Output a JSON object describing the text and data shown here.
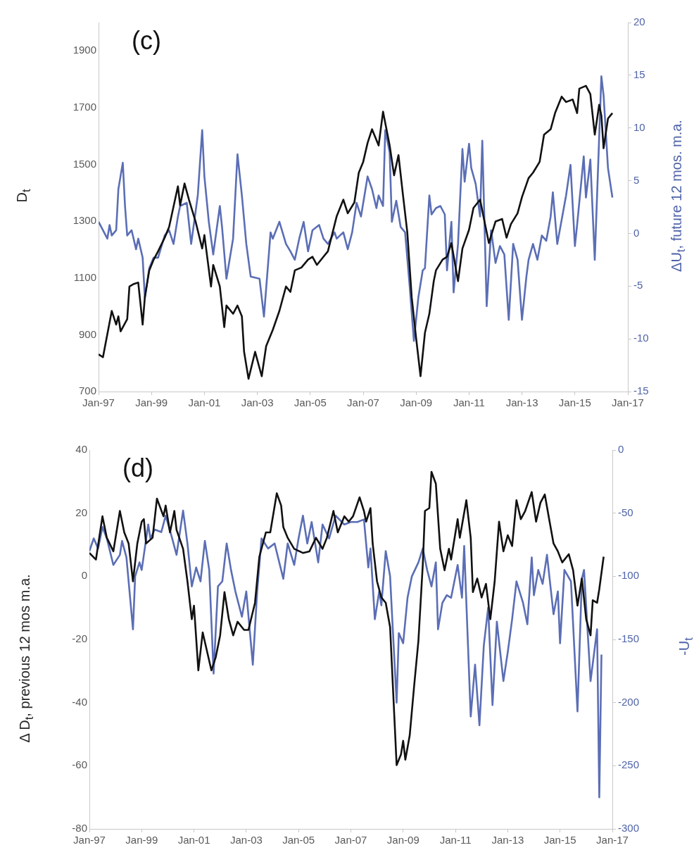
{
  "chart_data": [
    {
      "type": "line",
      "ylabel": "D$_{t}$",
      "y2label": "ΔU$_{t}$, future 12 mos. m.a.",
      "annotations": [
        "(c)"
      ],
      "xlim": [
        "1997-01",
        "2017-01"
      ],
      "xticks": [
        {
          "value": "1997-01",
          "label": "Jan-97"
        },
        {
          "value": "1999-01",
          "label": "Jan-99"
        },
        {
          "value": "2001-01",
          "label": "Jan-01"
        },
        {
          "value": "2003-01",
          "label": "Jan-03"
        },
        {
          "value": "2005-01",
          "label": "Jan-05"
        },
        {
          "value": "2007-01",
          "label": "Jan-07"
        },
        {
          "value": "2009-01",
          "label": "Jan-09"
        },
        {
          "value": "2011-01",
          "label": "Jan-11"
        },
        {
          "value": "2013-01",
          "label": "Jan-13"
        },
        {
          "value": "2015-01",
          "label": "Jan-15"
        },
        {
          "value": "2017-01",
          "label": "Jan-17"
        }
      ],
      "ylim": [
        700,
        2000
      ],
      "yticks": [
        700,
        900,
        1100,
        1300,
        1500,
        1700,
        1900
      ],
      "y2lim": [
        -15,
        20
      ],
      "y2ticks": [
        -15,
        -10,
        -5,
        0,
        5,
        10,
        15,
        20
      ],
      "series": [
        {
          "color": "#111111",
          "x": [
            "1997-01",
            "1997-03",
            "1997-07",
            "1997-09",
            "1997-10",
            "1997-11",
            "1998-02",
            "1998-03",
            "1998-05",
            "1998-07",
            "1998-09",
            "1998-10",
            "1998-12",
            "1999-02",
            "1999-04",
            "1999-07",
            "1999-09",
            "2000-01",
            "2000-02",
            "2000-04",
            "2000-06",
            "2000-09",
            "2000-12",
            "2001-01",
            "2001-04",
            "2001-05",
            "2001-08",
            "2001-10",
            "2001-11",
            "2002-02",
            "2002-04",
            "2002-06",
            "2002-07",
            "2002-09",
            "2002-12",
            "2003-03",
            "2003-05",
            "2003-08",
            "2003-11",
            "2004-02",
            "2004-04",
            "2004-06",
            "2004-09",
            "2004-12",
            "2005-02",
            "2005-04",
            "2005-07",
            "2005-09",
            "2006-01",
            "2006-04",
            "2006-06",
            "2006-09",
            "2006-11",
            "2007-01",
            "2007-03",
            "2007-05",
            "2007-08",
            "2007-10",
            "2008-01",
            "2008-03",
            "2008-05",
            "2008-07",
            "2008-09",
            "2008-11",
            "2009-01",
            "2009-03",
            "2009-05",
            "2009-07",
            "2009-09",
            "2009-10",
            "2010-01",
            "2010-03",
            "2010-05",
            "2010-08",
            "2010-10",
            "2011-01",
            "2011-03",
            "2011-06",
            "2011-08",
            "2011-10",
            "2012-01",
            "2012-04",
            "2012-06",
            "2012-08",
            "2012-11",
            "2013-01",
            "2013-04",
            "2013-06",
            "2013-09",
            "2013-11",
            "2014-02",
            "2014-04",
            "2014-07",
            "2014-09",
            "2014-12",
            "2015-02",
            "2015-03",
            "2015-06",
            "2015-08",
            "2015-10",
            "2015-12",
            "2016-01",
            "2016-02",
            "2016-04",
            "2016-06"
          ],
          "values": [
            831,
            821,
            984,
            936,
            965,
            912,
            955,
            1070,
            1079,
            1084,
            936,
            1032,
            1127,
            1165,
            1194,
            1242,
            1280,
            1423,
            1356,
            1433,
            1376,
            1299,
            1204,
            1251,
            1070,
            1146,
            1070,
            927,
            1003,
            974,
            1003,
            965,
            840,
            745,
            840,
            754,
            860,
            917,
            984,
            1070,
            1051,
            1127,
            1137,
            1165,
            1175,
            1146,
            1175,
            1194,
            1318,
            1376,
            1328,
            1366,
            1471,
            1509,
            1576,
            1624,
            1567,
            1686,
            1567,
            1462,
            1533,
            1395,
            1261,
            1032,
            888,
            754,
            907,
            974,
            1089,
            1127,
            1165,
            1175,
            1223,
            1089,
            1204,
            1270,
            1347,
            1376,
            1299,
            1223,
            1299,
            1308,
            1242,
            1290,
            1328,
            1385,
            1452,
            1471,
            1509,
            1605,
            1624,
            1681,
            1739,
            1720,
            1729,
            1681,
            1767,
            1777,
            1748,
            1605,
            1710,
            1672,
            1557,
            1662,
            1681
          ]
        },
        {
          "color": "#5b6eb5",
          "axis": "y2",
          "x": [
            "1997-01",
            "1997-03",
            "1997-05",
            "1997-06",
            "1997-07",
            "1997-09",
            "1997-10",
            "1997-12",
            "1998-01",
            "1998-02",
            "1998-04",
            "1998-06",
            "1998-07",
            "1998-09",
            "1998-10",
            "1998-12",
            "1999-02",
            "1999-04",
            "1999-07",
            "1999-09",
            "1999-11",
            "2000-01",
            "2000-02",
            "2000-05",
            "2000-07",
            "2000-10",
            "2000-12",
            "2001-01",
            "2001-03",
            "2001-05",
            "2001-08",
            "2001-09",
            "2001-11",
            "2002-02",
            "2002-04",
            "2002-06",
            "2002-08",
            "2002-10",
            "2003-02",
            "2003-04",
            "2003-07",
            "2003-08",
            "2003-11",
            "2004-02",
            "2004-04",
            "2004-06",
            "2004-08",
            "2004-10",
            "2004-12",
            "2005-02",
            "2005-05",
            "2005-07",
            "2005-09",
            "2005-12",
            "2006-01",
            "2006-04",
            "2006-06",
            "2006-08",
            "2006-10",
            "2006-12",
            "2007-03",
            "2007-05",
            "2007-07",
            "2007-08",
            "2007-10",
            "2007-11",
            "2008-01",
            "2008-02",
            "2008-04",
            "2008-06",
            "2008-08",
            "2008-10",
            "2008-12",
            "2009-02",
            "2009-04",
            "2009-05",
            "2009-07",
            "2009-08",
            "2009-10",
            "2009-12",
            "2010-02",
            "2010-03",
            "2010-05",
            "2010-06",
            "2010-08",
            "2010-10",
            "2010-11",
            "2011-01",
            "2011-02",
            "2011-04",
            "2011-06",
            "2011-07",
            "2011-09",
            "2011-11",
            "2012-01",
            "2012-03",
            "2012-05",
            "2012-07",
            "2012-09",
            "2012-11",
            "2013-01",
            "2013-03",
            "2013-04",
            "2013-06",
            "2013-08",
            "2013-10",
            "2013-12",
            "2014-02",
            "2014-03",
            "2014-05",
            "2014-07",
            "2014-09",
            "2014-11",
            "2015-01",
            "2015-02",
            "2015-05",
            "2015-06",
            "2015-08",
            "2015-10",
            "2016-01",
            "2016-02",
            "2016-04",
            "2016-06"
          ],
          "values": [
            1.1,
            0.3,
            -0.5,
            0.8,
            -0.2,
            0.3,
            4.2,
            6.7,
            2.6,
            -0.2,
            0.3,
            -1.5,
            -0.5,
            -2.3,
            -6.1,
            -3.3,
            -2.3,
            -2.3,
            -0.2,
            0.3,
            -1.0,
            1.6,
            2.6,
            2.9,
            -1.0,
            3.6,
            9.8,
            5.4,
            1.1,
            -2.0,
            2.6,
            0.6,
            -4.3,
            -0.5,
            7.5,
            3.6,
            -1.0,
            -4.1,
            -4.3,
            -7.9,
            0.1,
            -0.5,
            1.1,
            -1.0,
            -1.7,
            -2.5,
            -0.5,
            1.1,
            -1.7,
            0.3,
            0.8,
            -0.5,
            -1.0,
            0.1,
            -0.5,
            0.1,
            -1.5,
            0.1,
            2.9,
            1.6,
            5.4,
            4.2,
            2.4,
            3.6,
            2.6,
            9.8,
            7.7,
            1.1,
            3.1,
            0.6,
            0.1,
            -4.8,
            -10.2,
            -6.1,
            -3.5,
            -3.3,
            3.6,
            1.8,
            2.4,
            2.6,
            1.8,
            -3.5,
            1.1,
            -5.6,
            -1.0,
            8.0,
            4.9,
            8.5,
            6.2,
            4.7,
            1.6,
            8.8,
            -6.9,
            0.3,
            -2.8,
            -1.2,
            -2.0,
            -8.2,
            -1.0,
            -2.5,
            -8.2,
            -4.1,
            -2.5,
            -1.0,
            -2.5,
            -0.2,
            -0.7,
            1.6,
            3.9,
            -1.0,
            1.3,
            3.6,
            6.5,
            -1.2,
            0.8,
            7.3,
            3.4,
            7.0,
            -2.5,
            14.9,
            13.1,
            6.2,
            3.4
          ]
        }
      ]
    },
    {
      "type": "line",
      "ylabel": "Δ D$_{t}$, previous 12 mos m.a.",
      "y2label": "-U$_{t}$",
      "annotations": [
        "(d)"
      ],
      "xlim": [
        "1997-01",
        "2017-01"
      ],
      "xticks": [
        {
          "value": "1997-01",
          "label": "Jan-97"
        },
        {
          "value": "1999-01",
          "label": "Jan-99"
        },
        {
          "value": "2001-01",
          "label": "Jan-01"
        },
        {
          "value": "2003-01",
          "label": "Jan-03"
        },
        {
          "value": "2005-01",
          "label": "Jan-05"
        },
        {
          "value": "2007-01",
          "label": "Jan-07"
        },
        {
          "value": "2009-01",
          "label": "Jan-09"
        },
        {
          "value": "2011-01",
          "label": "Jan-11"
        },
        {
          "value": "2013-01",
          "label": "Jan-13"
        },
        {
          "value": "2015-01",
          "label": "Jan-15"
        },
        {
          "value": "2017-01",
          "label": "Jan-17"
        }
      ],
      "ylim": [
        -80,
        40
      ],
      "yticks": [
        -80,
        -60,
        -40,
        -20,
        0,
        20,
        40
      ],
      "y2lim": [
        -300,
        0
      ],
      "y2ticks": [
        -300,
        -250,
        -200,
        -150,
        -100,
        -50,
        0
      ],
      "series": [
        {
          "color": "#111111",
          "x": [
            "1997-01",
            "1997-04",
            "1997-07",
            "1997-09",
            "1997-12",
            "1998-03",
            "1998-05",
            "1998-07",
            "1998-09",
            "1998-11",
            "1999-01",
            "1999-02",
            "1999-03",
            "1999-06",
            "1999-08",
            "1999-11",
            "1999-12",
            "2000-02",
            "2000-04",
            "2000-05",
            "2000-08",
            "2000-10",
            "2000-12",
            "2001-01",
            "2001-03",
            "2001-05",
            "2001-07",
            "2001-09",
            "2001-11",
            "2002-01",
            "2002-03",
            "2002-05",
            "2002-07",
            "2002-09",
            "2002-12",
            "2003-02",
            "2003-05",
            "2003-07",
            "2003-10",
            "2003-12",
            "2004-03",
            "2004-05",
            "2004-06",
            "2004-08",
            "2004-11",
            "2005-03",
            "2005-06",
            "2005-09",
            "2005-12",
            "2006-02",
            "2006-05",
            "2006-07",
            "2006-10",
            "2006-12",
            "2007-02",
            "2007-05",
            "2007-07",
            "2007-08",
            "2007-10",
            "2007-11",
            "2008-01",
            "2008-03",
            "2008-05",
            "2008-07",
            "2008-08",
            "2008-10",
            "2008-12",
            "2009-01",
            "2009-02",
            "2009-04",
            "2009-06",
            "2009-08",
            "2009-10",
            "2009-11",
            "2010-01",
            "2010-02",
            "2010-04",
            "2010-06",
            "2010-08",
            "2010-10",
            "2010-11",
            "2011-02",
            "2011-03",
            "2011-06",
            "2011-08",
            "2011-09",
            "2011-11",
            "2012-01",
            "2012-03",
            "2012-05",
            "2012-07",
            "2012-09",
            "2012-11",
            "2013-01",
            "2013-03",
            "2013-05",
            "2013-07",
            "2013-09",
            "2013-12",
            "2014-02",
            "2014-04",
            "2014-06",
            "2014-08",
            "2014-10",
            "2014-12",
            "2015-02",
            "2015-05",
            "2015-07",
            "2015-09",
            "2015-11",
            "2016-01",
            "2016-03",
            "2016-04",
            "2016-06",
            "2016-07",
            "2016-09"
          ],
          "values": [
            7.4,
            5.3,
            19.0,
            12.2,
            7.9,
            20.7,
            13.9,
            10.4,
            -1.6,
            10.4,
            17.3,
            18.1,
            10.4,
            12.2,
            24.6,
            19.0,
            22.4,
            13.9,
            20.7,
            14.7,
            8.7,
            -1.6,
            -13.6,
            -9.3,
            -29.8,
            -17.8,
            -23.8,
            -29.8,
            -25.6,
            -18.7,
            -5.0,
            -13.6,
            -18.7,
            -14.4,
            -17.0,
            -17.0,
            -8.4,
            6.2,
            13.9,
            13.9,
            26.3,
            22.4,
            15.6,
            12.2,
            8.7,
            7.4,
            7.9,
            12.2,
            8.7,
            12.2,
            20.7,
            13.9,
            19.0,
            17.3,
            19.0,
            25.0,
            20.7,
            17.3,
            21.6,
            10.4,
            -1.6,
            -6.7,
            -8.4,
            -16.1,
            -30.7,
            -59.8,
            -56.4,
            -52.1,
            -58.1,
            -50.4,
            -35.0,
            -20.4,
            3.6,
            20.7,
            21.6,
            33.1,
            29.3,
            8.7,
            1.9,
            8.7,
            5.3,
            18.1,
            12.2,
            24.1,
            12.2,
            -5.0,
            -0.7,
            -6.7,
            -2.4,
            -13.6,
            -1.6,
            17.3,
            7.9,
            13.0,
            9.6,
            24.1,
            18.1,
            20.7,
            26.7,
            17.3,
            23.3,
            25.9,
            18.1,
            10.4,
            7.9,
            4.4,
            7.0,
            1.9,
            -9.3,
            -0.7,
            -13.6,
            -18.7,
            -7.6,
            -8.4,
            -4.1,
            6.2
          ]
        },
        {
          "color": "#5b6eb5",
          "axis": "y2",
          "x": [
            "1997-01",
            "1997-03",
            "1997-05",
            "1997-07",
            "1997-09",
            "1997-12",
            "1998-03",
            "1998-04",
            "1998-06",
            "1998-09",
            "1998-10",
            "1998-12",
            "1999-01",
            "1999-04",
            "1999-05",
            "1999-07",
            "1999-10",
            "1999-12",
            "2000-03",
            "2000-05",
            "2000-08",
            "2000-10",
            "2000-12",
            "2001-02",
            "2001-04",
            "2001-06",
            "2001-08",
            "2001-10",
            "2001-12",
            "2002-02",
            "2002-04",
            "2002-06",
            "2002-08",
            "2002-11",
            "2003-01",
            "2003-04",
            "2003-06",
            "2003-08",
            "2003-11",
            "2004-02",
            "2004-06",
            "2004-08",
            "2004-11",
            "2005-01",
            "2005-03",
            "2005-05",
            "2005-07",
            "2005-10",
            "2005-12",
            "2006-03",
            "2006-06",
            "2006-10",
            "2007-01",
            "2007-04",
            "2007-07",
            "2007-09",
            "2007-10",
            "2007-12",
            "2008-02",
            "2008-03",
            "2008-05",
            "2008-07",
            "2008-08",
            "2008-10",
            "2008-11",
            "2009-01",
            "2009-03",
            "2009-05",
            "2009-08",
            "2009-10",
            "2009-12",
            "2010-02",
            "2010-04",
            "2010-05",
            "2010-07",
            "2010-09",
            "2010-11",
            "2011-02",
            "2011-04",
            "2011-05",
            "2011-08",
            "2011-10",
            "2011-12",
            "2012-02",
            "2012-04",
            "2012-06",
            "2012-08",
            "2012-11",
            "2013-01",
            "2013-03",
            "2013-05",
            "2013-08",
            "2013-10",
            "2013-12",
            "2014-01",
            "2014-03",
            "2014-05",
            "2014-07",
            "2014-10",
            "2014-12",
            "2015-01",
            "2015-03",
            "2015-06",
            "2015-09",
            "2015-11",
            "2015-12",
            "2016-03",
            "2016-06",
            "2016-07",
            "2016-08"
          ],
          "values": [
            -80,
            -70,
            -78,
            -61,
            -70,
            -91,
            -83,
            -72,
            -85,
            -142,
            -100,
            -89,
            -95,
            -59,
            -70,
            -63,
            -65,
            -52,
            -70,
            -83,
            -48,
            -74,
            -108,
            -93,
            -104,
            -72,
            -95,
            -177,
            -108,
            -104,
            -74,
            -95,
            -112,
            -132,
            -112,
            -170,
            -112,
            -70,
            -78,
            -74,
            -102,
            -74,
            -91,
            -70,
            -52,
            -74,
            -57,
            -89,
            -59,
            -70,
            -52,
            -59,
            -57,
            -57,
            -55,
            -93,
            -78,
            -134,
            -112,
            -123,
            -80,
            -100,
            -134,
            -200,
            -145,
            -153,
            -117,
            -100,
            -89,
            -78,
            -95,
            -108,
            -89,
            -142,
            -121,
            -115,
            -117,
            -91,
            -117,
            -76,
            -211,
            -170,
            -218,
            -155,
            -125,
            -202,
            -136,
            -183,
            -160,
            -134,
            -104,
            -121,
            -138,
            -85,
            -115,
            -95,
            -106,
            -83,
            -130,
            -112,
            -153,
            -95,
            -104,
            -207,
            -102,
            -95,
            -183,
            -142,
            -275,
            -162
          ]
        }
      ]
    }
  ]
}
